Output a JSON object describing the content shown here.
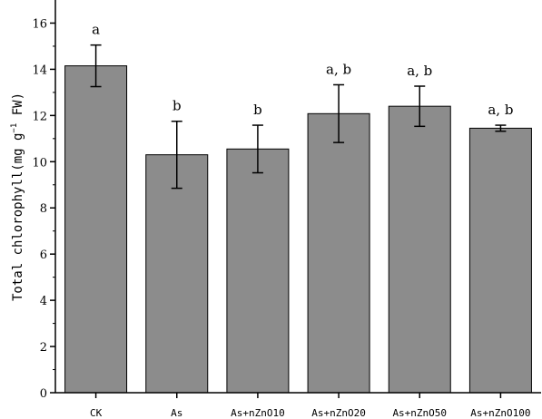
{
  "chart_data": {
    "type": "bar",
    "ylabel_main": "Total chlorophyll(mg g",
    "ylabel_sup": "−1",
    "ylabel_tail": " FW)",
    "ylim": [
      0,
      17
    ],
    "yticks": [
      0,
      2,
      4,
      6,
      8,
      10,
      12,
      14,
      16
    ],
    "categories": [
      "CK",
      "As",
      "As+nZnO10",
      "As+nZnO20",
      "As+nZnO50",
      "As+nZnO100"
    ],
    "values": [
      14.15,
      10.3,
      10.55,
      12.08,
      12.4,
      11.45
    ],
    "errors": [
      0.9,
      1.45,
      1.03,
      1.25,
      0.87,
      0.13
    ],
    "significance": [
      "a",
      "b",
      "b",
      "a, b",
      "a, b",
      "a, b"
    ],
    "bar_color": "#8c8c8c",
    "bar_edge_color": "#000000"
  }
}
